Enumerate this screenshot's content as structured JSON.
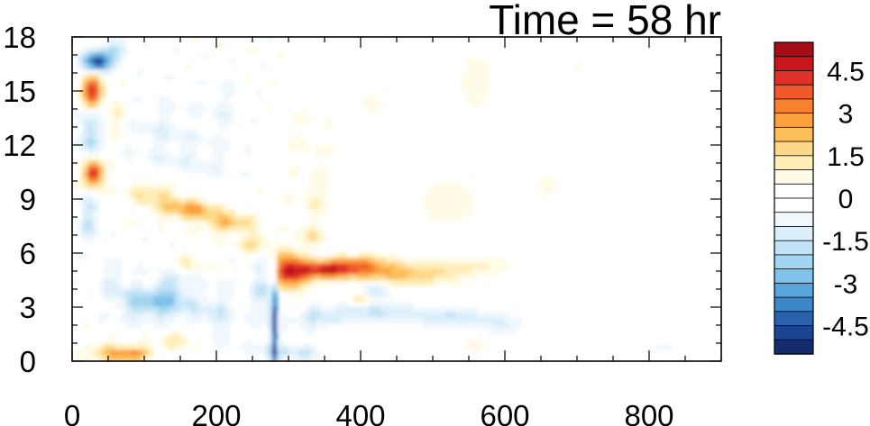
{
  "title": "Time = 58 hr",
  "chart_data": {
    "type": "heatmap",
    "title": "Time = 58 hr",
    "xlabel": "",
    "ylabel": "",
    "xlim": [
      0,
      900
    ],
    "ylim": [
      0,
      18
    ],
    "x_ticks": [
      "0",
      "200",
      "400",
      "600",
      "800"
    ],
    "x_tick_values": [
      0,
      200,
      400,
      600,
      800
    ],
    "y_ticks": [
      "0",
      "3",
      "6",
      "9",
      "12",
      "15",
      "18"
    ],
    "y_tick_values": [
      0,
      3,
      6,
      9,
      12,
      15,
      18
    ],
    "colorbar": {
      "labels": [
        "4.5",
        "3",
        "1.5",
        "0",
        "-1.5",
        "-3",
        "-4.5"
      ],
      "label_values": [
        4.5,
        3,
        1.5,
        0,
        -1.5,
        -3,
        -4.5
      ],
      "colors": [
        "#a50f15",
        "#c8161c",
        "#e0302a",
        "#f05a2a",
        "#f7812e",
        "#fba23d",
        "#fdbf5a",
        "#fed88a",
        "#ffeeb8",
        "#fffbe6",
        "#ffffff",
        "#ffffff",
        "#f0f8fd",
        "#dceffa",
        "#c2e3f6",
        "#a3d5f1",
        "#80c2ea",
        "#5aa6db",
        "#3d86c7",
        "#2a63ad",
        "#1b4590",
        "#142c6e"
      ]
    },
    "features": [
      {
        "x": 35,
        "y": 16.6,
        "value": -4.5
      },
      {
        "x": 30,
        "y": 15.0,
        "value": 4.5
      },
      {
        "x": 30,
        "y": 10.4,
        "value": 5.0
      },
      {
        "x": 25,
        "y": 12.5,
        "value": -2.0
      },
      {
        "x": 150,
        "y": 8.4,
        "value": 2.5
      },
      {
        "x": 100,
        "y": 3.3,
        "value": -2.0
      },
      {
        "x": 80,
        "y": 0.5,
        "value": 3.0
      },
      {
        "x": 280,
        "y": 2.0,
        "value": -4.0
      },
      {
        "x": 350,
        "y": 5.0,
        "value": 4.5
      },
      {
        "x": 460,
        "y": 4.8,
        "value": 2.0
      },
      {
        "x": 420,
        "y": 3.8,
        "value": -1.5
      },
      {
        "x": 520,
        "y": 16.0,
        "value": 0.8
      },
      {
        "x": 600,
        "y": 1.5,
        "value": -0.8
      },
      {
        "x": 500,
        "y": 9.5,
        "value": 0.8
      },
      {
        "x": 650,
        "y": 10.0,
        "value": 0.6
      }
    ]
  }
}
